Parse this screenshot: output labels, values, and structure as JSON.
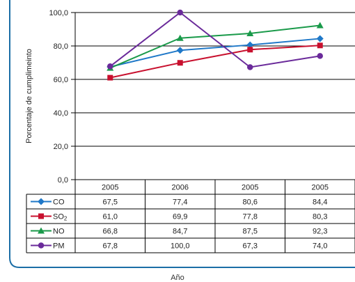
{
  "chart_data": {
    "type": "line",
    "categories": [
      "2005",
      "2006",
      "2005",
      "2005"
    ],
    "ylabel": "Porcentaje de cumplimeinto",
    "xlabel": "Año",
    "ylim": [
      0,
      100
    ],
    "yticks": [
      "0,0",
      "20,0",
      "40,0",
      "60,0",
      "80,0",
      "100,0"
    ],
    "grid": true,
    "legend_placement": "table-left",
    "series": [
      {
        "name": "CO",
        "marker": "diamond",
        "color": "#1f78c8",
        "values": [
          67.5,
          77.4,
          80.6,
          84.4
        ],
        "labels": [
          "67,5",
          "77,4",
          "80,6",
          "84,4"
        ]
      },
      {
        "name": "SO2",
        "marker": "square",
        "color": "#c8102e",
        "values": [
          61.0,
          69.9,
          77.8,
          80.3
        ],
        "labels": [
          "61,0",
          "69,9",
          "77,8",
          "80,3"
        ]
      },
      {
        "name": "NO",
        "marker": "triangle",
        "color": "#1a9a4a",
        "values": [
          66.8,
          84.7,
          87.5,
          92.3
        ],
        "labels": [
          "66,8",
          "84,7",
          "87,5",
          "92,3"
        ]
      },
      {
        "name": "PM",
        "marker": "circle",
        "color": "#6a2a9a",
        "values": [
          67.8,
          100.0,
          67.3,
          74.0
        ],
        "labels": [
          "67,8",
          "100,0",
          "67,3",
          "74,0"
        ]
      }
    ]
  }
}
